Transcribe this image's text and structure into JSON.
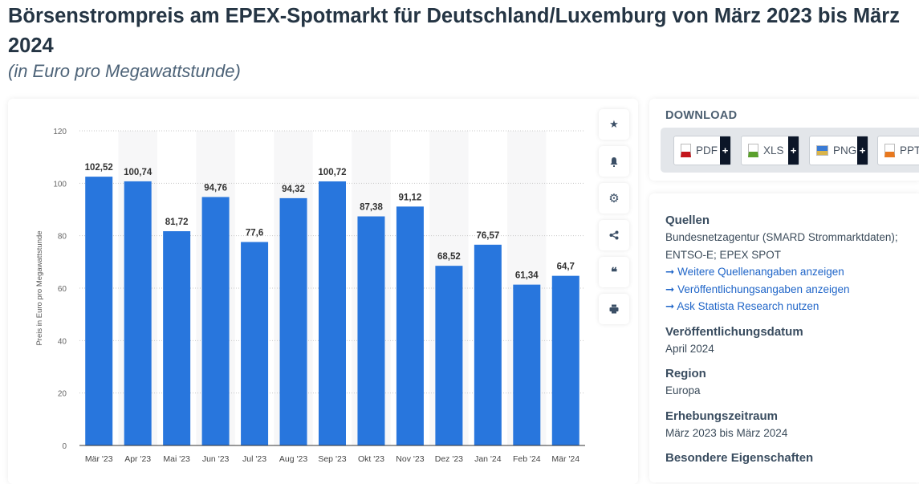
{
  "title": "Börsenstrompreis am EPEX-Spotmarkt für Deutschland/Luxemburg von März 2023 bis März 2024",
  "subtitle": "(in Euro pro Megawattstunde)",
  "toolbar": [
    "star-icon",
    "bell-icon",
    "gear-icon",
    "share-icon",
    "quote-icon",
    "print-icon"
  ],
  "download": {
    "title": "DOWNLOAD",
    "buttons": [
      {
        "label": "PDF",
        "color": "#c4161c"
      },
      {
        "label": "XLS",
        "color": "#5aa02c"
      },
      {
        "label": "PNG",
        "color": "#3a7bd5"
      },
      {
        "label": "PPT",
        "color": "#e8781e"
      }
    ],
    "plus": "+"
  },
  "info": {
    "sources_title": "Quellen",
    "sources_text": "Bundesnetzagentur (SMARD Strommarktdaten); ENTSO-E; EPEX SPOT",
    "links": [
      "Weitere Quellenangaben anzeigen",
      "Veröffentlichungsangaben anzeigen",
      "Ask Statista Research nutzen"
    ],
    "link_arrow": "➞",
    "pub_title": "Veröffentlichungsdatum",
    "pub_value": "April 2024",
    "region_title": "Region",
    "region_value": "Europa",
    "period_title": "Erhebungszeitraum",
    "period_value": "März 2023 bis März 2024",
    "special_title": "Besondere Eigenschaften"
  },
  "chart_data": {
    "type": "bar",
    "categories": [
      "Mär '23",
      "Apr '23",
      "Mai '23",
      "Jun '23",
      "Jul '23",
      "Aug '23",
      "Sep '23",
      "Okt '23",
      "Nov '23",
      "Dez '23",
      "Jan '24",
      "Feb '24",
      "Mär '24"
    ],
    "values": [
      102.52,
      100.74,
      81.72,
      94.76,
      77.6,
      94.32,
      100.72,
      87.38,
      91.12,
      68.52,
      76.57,
      61.34,
      64.7
    ],
    "labels": [
      "102,52",
      "100,74",
      "81,72",
      "94,76",
      "77,6",
      "94,32",
      "100,72",
      "87,38",
      "91,12",
      "68,52",
      "76,57",
      "61,34",
      "64,7"
    ],
    "ylabel": "Preis in Euro pro Megawattstunde",
    "ylim": [
      0,
      120
    ],
    "yticks": [
      0,
      20,
      40,
      60,
      80,
      100,
      120
    ],
    "grid": true,
    "bar_color": "#2876dd"
  }
}
